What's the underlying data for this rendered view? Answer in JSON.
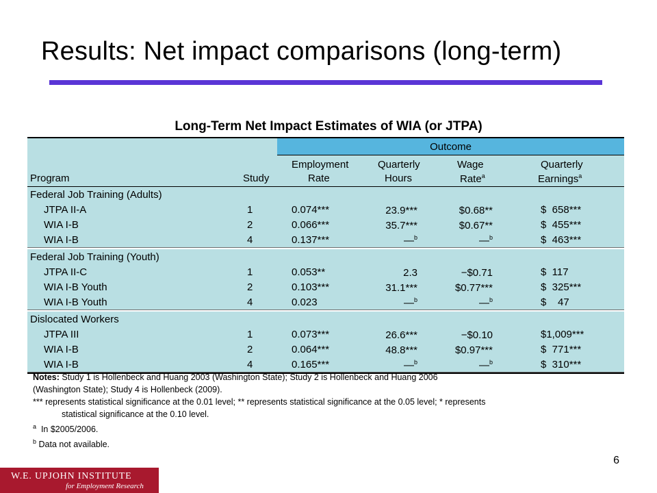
{
  "slide": {
    "title": "Results: Net impact comparisons (long-term)",
    "page_number": "6",
    "colors": {
      "accent_rule": "#5a35d6",
      "table_fill": "#b9dfe3",
      "outcome_band": "#56b5de",
      "logo_fill": "#a8192e"
    }
  },
  "table": {
    "caption": "Long-Term Net Impact Estimates of WIA (or JTPA)",
    "header": {
      "outcome": "Outcome",
      "program": "Program",
      "study": "Study",
      "employment": [
        "Employment",
        "Rate"
      ],
      "hours": [
        "Quarterly",
        "Hours"
      ],
      "wage": [
        "Wage",
        "Rate"
      ],
      "wage_sup": "a",
      "earnings": [
        "Quarterly",
        "Earnings"
      ],
      "earnings_sup": "a"
    },
    "groups": [
      {
        "title": "Federal Job Training (Adults)",
        "rows": [
          {
            "program": "JTPA II-A",
            "study": "1",
            "emp": "0.074***",
            "hours": "23.9***",
            "hours_sup": "",
            "wage": "$0.68**",
            "wage_sup": "",
            "earn": "$  658***"
          },
          {
            "program": "WIA I-B",
            "study": "2",
            "emp": "0.066***",
            "hours": "35.7***",
            "hours_sup": "",
            "wage": "$0.67**",
            "wage_sup": "",
            "earn": "$  455***"
          },
          {
            "program": "WIA I-B",
            "study": "4",
            "emp": "0.137***",
            "hours": "—",
            "hours_sup": "b",
            "wage": "—",
            "wage_sup": "b",
            "earn": "$  463***"
          }
        ]
      },
      {
        "title": "Federal Job Training (Youth)",
        "rows": [
          {
            "program": "JTPA II-C",
            "study": "1",
            "emp": "0.053**",
            "hours": "2.3",
            "hours_sup": "",
            "wage": "−$0.71",
            "wage_sup": "",
            "earn": "$  117"
          },
          {
            "program": "WIA I-B Youth",
            "study": "2",
            "emp": "0.103***",
            "hours": "31.1***",
            "hours_sup": "",
            "wage": "$0.77***",
            "wage_sup": "",
            "earn": "$  325***"
          },
          {
            "program": "WIA I-B Youth",
            "study": "4",
            "emp": "0.023",
            "hours": "—",
            "hours_sup": "b",
            "wage": "—",
            "wage_sup": "b",
            "earn": "$    47"
          }
        ]
      },
      {
        "title": "Dislocated Workers",
        "rows": [
          {
            "program": "JTPA III",
            "study": "1",
            "emp": "0.073***",
            "hours": "26.6***",
            "hours_sup": "",
            "wage": "−$0.10",
            "wage_sup": "",
            "earn": "$1,009***"
          },
          {
            "program": "WIA I-B",
            "study": "2",
            "emp": "0.064***",
            "hours": "48.8***",
            "hours_sup": "",
            "wage": "$0.97***",
            "wage_sup": "",
            "earn": "$  771***"
          },
          {
            "program": "WIA I-B",
            "study": "4",
            "emp": "0.165***",
            "hours": "—",
            "hours_sup": "b",
            "wage": "—",
            "wage_sup": "b",
            "earn": "$  310***"
          }
        ]
      }
    ]
  },
  "notes": {
    "label": "Notes:",
    "line1": " Study 1 is Hollenbeck and Huang 2003 (Washington State); Study 2 is Hollenbeck and Huang 2006",
    "line2": "(Washington State); Study 4 is Hollenbeck (2009).",
    "line3": "*** represents statistical significance at the 0.01 level; ** represents statistical significance at the 0.05 level; * represents",
    "line4": "statistical significance at the 0.10 level.",
    "fn_a_mark": "a",
    "fn_a": "  In $2005/2006.",
    "fn_b_mark": "b",
    "fn_b": " Data not available."
  },
  "logo": {
    "main": "W.E. UPJOHN INSTITUTE",
    "sub": "for Employment Research"
  }
}
